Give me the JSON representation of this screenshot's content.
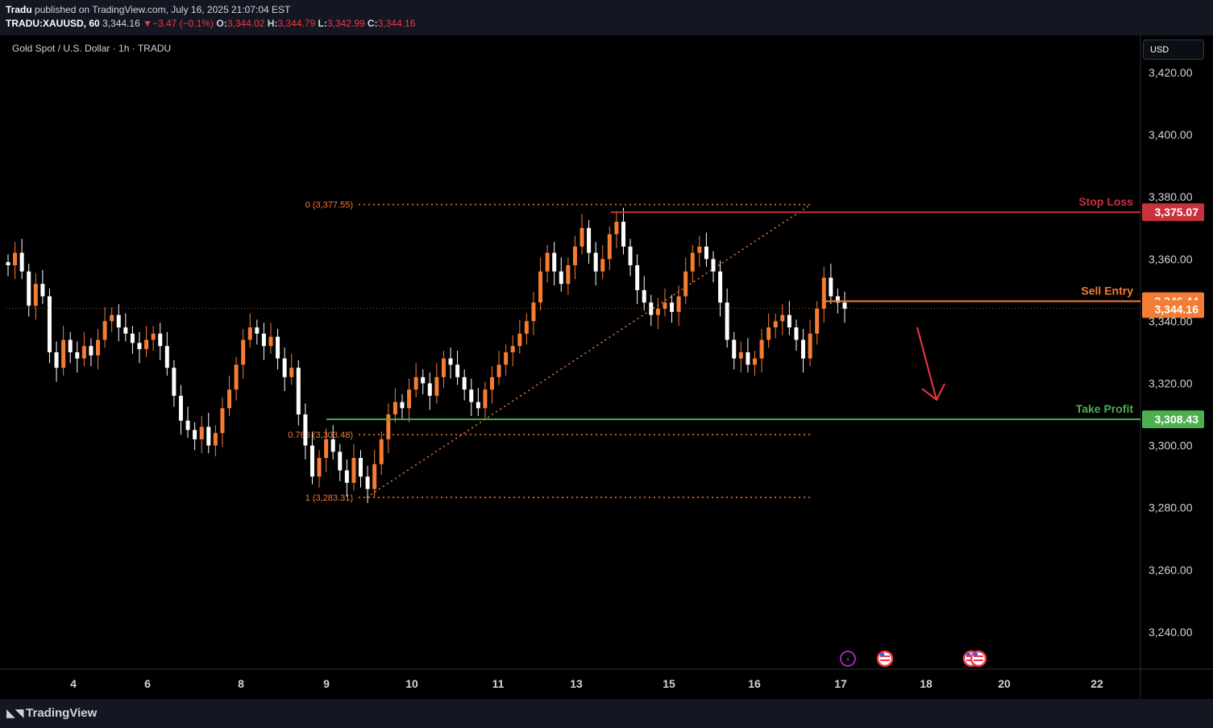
{
  "header": {
    "publisher": "Tradu",
    "published_text": "published on TradingView.com, July 16, 2025 21:07:04 EST",
    "symbol": "TRADU:XAUUSD, 60",
    "last": "3,344.16",
    "change": "−3.47 (−0.1%)",
    "change_arrow": "▼",
    "open_label": "O:",
    "open": "3,344.02",
    "high_label": "H:",
    "high": "3,344.79",
    "low_label": "L:",
    "low": "3,342.99",
    "close_label": "C:",
    "close": "3,344.16"
  },
  "legend": {
    "title": "Gold Spot / U.S. Dollar · 1h · TRADU"
  },
  "currency_button": "USD",
  "footer": {
    "brand": "TradingView"
  },
  "colors": {
    "background": "#000000",
    "up": "#f57c34",
    "down": "#ffffff",
    "stop_loss": "#c8323c",
    "sell_entry": "#f57c34",
    "take_profit": "#4caf50",
    "fib": "#f57c34",
    "arrow": "#f23645"
  },
  "chart_data": {
    "type": "candlestick",
    "ylim": [
      3228,
      3432
    ],
    "y_ticks": [
      "3,420.00",
      "3,400.00",
      "3,380.00",
      "3,360.00",
      "3,340.00",
      "3,320.00",
      "3,300.00",
      "3,280.00",
      "3,260.00",
      "3,240.00"
    ],
    "x_ticks": [
      "4",
      "6",
      "8",
      "9",
      "10",
      "11",
      "13",
      "15",
      "16",
      "17",
      "18",
      "20",
      "22"
    ],
    "close_series": [
      3358,
      3362,
      3356,
      3345,
      3352,
      3348,
      3330,
      3325,
      3334,
      3330,
      3328,
      3332,
      3329,
      3334,
      3340,
      3342,
      3338,
      3336,
      3333,
      3331,
      3334,
      3336,
      3332,
      3325,
      3316,
      3308,
      3305,
      3302,
      3306,
      3300,
      3304,
      3312,
      3318,
      3326,
      3334,
      3338,
      3336,
      3332,
      3335,
      3328,
      3322,
      3325,
      3310,
      3300,
      3290,
      3296,
      3302,
      3298,
      3292,
      3288,
      3296,
      3290,
      3286,
      3294,
      3302,
      3310,
      3314,
      3312,
      3318,
      3322,
      3320,
      3316,
      3322,
      3328,
      3326,
      3322,
      3318,
      3314,
      3312,
      3318,
      3322,
      3326,
      3330,
      3332,
      3336,
      3340,
      3346,
      3356,
      3362,
      3356,
      3352,
      3358,
      3364,
      3370,
      3362,
      3356,
      3360,
      3368,
      3372,
      3364,
      3358,
      3350,
      3346,
      3342,
      3344,
      3346,
      3343,
      3348,
      3356,
      3362,
      3364,
      3360,
      3356,
      3346,
      3334,
      3328,
      3330,
      3326,
      3328,
      3334,
      3338,
      3340,
      3342,
      3338,
      3334,
      3328,
      3336,
      3344,
      3354,
      3348,
      3346,
      3344
    ],
    "price_labels": {
      "stop_loss": {
        "label": "Stop Loss",
        "value": 3375.07,
        "text": "3,375.07"
      },
      "sell_entry": {
        "label": "Sell Entry",
        "value": 3346.44,
        "text": "3,346.44"
      },
      "last_price": {
        "value": 3344.16,
        "text": "3,344.16"
      },
      "take_profit": {
        "label": "Take Profit",
        "value": 3308.43,
        "text": "3,308.43"
      }
    },
    "fibonacci": [
      {
        "label": "0 (3,377.55)",
        "value": 3377.55
      },
      {
        "label": "0.786 (3,303.48)",
        "value": 3303.48
      },
      {
        "label": "1 (3,283.31)",
        "value": 3283.31
      }
    ],
    "annotations": [
      "down-arrow"
    ]
  }
}
